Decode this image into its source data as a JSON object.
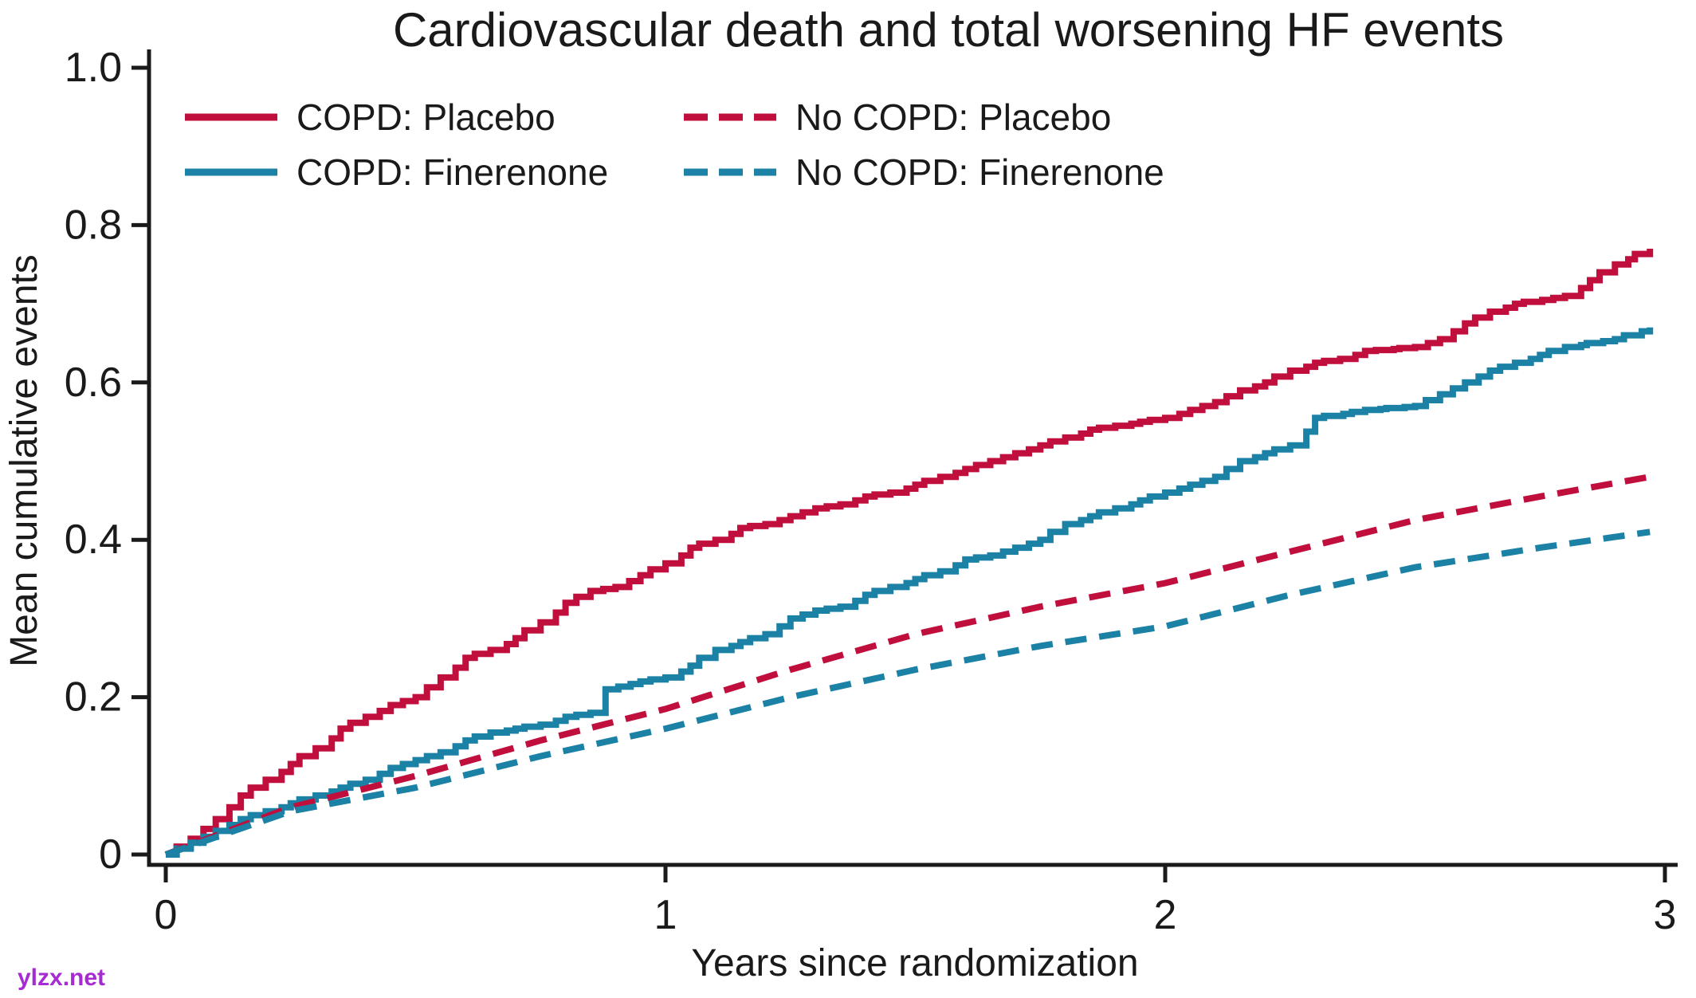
{
  "watermark": {
    "text": "ylzx.net",
    "color": "#a62bd3"
  },
  "chart_data": {
    "type": "line",
    "subtype": "step-cumulative-incidence",
    "title": "Cardiovascular death and total worsening HF events",
    "xlabel": "Years since randomization",
    "ylabel": "Mean cumulative events",
    "xlim": [
      0,
      3
    ],
    "ylim": [
      0,
      1.0
    ],
    "xticks": [
      0,
      1,
      2,
      3
    ],
    "xtick_labels": [
      "0",
      "1",
      "2",
      "3"
    ],
    "yticks": [
      0,
      0.2,
      0.4,
      0.6,
      0.8,
      1.0
    ],
    "ytick_labels": [
      "0",
      "0.2",
      "0.4",
      "0.6",
      "0.8",
      "1.0"
    ],
    "grid": false,
    "legend_position": "top-left-two-columns",
    "axis_color": "#1a1a1a",
    "text_color": "#1a1a1a",
    "series": [
      {
        "name": "COPD: Placebo",
        "color": "#c00f3c",
        "style": "solid",
        "step": true,
        "x": [
          0,
          0.05,
          0.1,
          0.15,
          0.2,
          0.25,
          0.3,
          0.35,
          0.4,
          0.45,
          0.5,
          0.55,
          0.6,
          0.65,
          0.7,
          0.75,
          0.8,
          0.85,
          0.9,
          0.95,
          1.0,
          1.05,
          1.1,
          1.15,
          1.2,
          1.25,
          1.3,
          1.35,
          1.4,
          1.45,
          1.5,
          1.55,
          1.6,
          1.65,
          1.7,
          1.75,
          1.8,
          1.85,
          1.9,
          1.95,
          2.0,
          2.05,
          2.1,
          2.15,
          2.2,
          2.25,
          2.3,
          2.35,
          2.4,
          2.5,
          2.55,
          2.6,
          2.65,
          2.7,
          2.8,
          2.85,
          2.9,
          2.97
        ],
        "y": [
          0,
          0.02,
          0.045,
          0.075,
          0.095,
          0.115,
          0.135,
          0.16,
          0.175,
          0.19,
          0.2,
          0.225,
          0.25,
          0.26,
          0.275,
          0.295,
          0.32,
          0.335,
          0.34,
          0.355,
          0.37,
          0.39,
          0.4,
          0.415,
          0.42,
          0.43,
          0.44,
          0.445,
          0.455,
          0.46,
          0.47,
          0.48,
          0.49,
          0.5,
          0.51,
          0.52,
          0.53,
          0.54,
          0.545,
          0.55,
          0.555,
          0.565,
          0.575,
          0.59,
          0.6,
          0.615,
          0.625,
          0.63,
          0.64,
          0.645,
          0.655,
          0.675,
          0.69,
          0.7,
          0.71,
          0.73,
          0.75,
          0.77
        ]
      },
      {
        "name": "COPD: Finerenone",
        "color": "#1b81a5",
        "style": "solid",
        "step": true,
        "x": [
          0,
          0.05,
          0.1,
          0.15,
          0.2,
          0.25,
          0.3,
          0.35,
          0.4,
          0.45,
          0.5,
          0.55,
          0.6,
          0.65,
          0.7,
          0.75,
          0.8,
          0.85,
          0.88,
          0.95,
          1.0,
          1.05,
          1.1,
          1.15,
          1.2,
          1.25,
          1.3,
          1.35,
          1.4,
          1.45,
          1.5,
          1.55,
          1.6,
          1.65,
          1.7,
          1.75,
          1.8,
          1.85,
          1.9,
          1.95,
          2.0,
          2.05,
          2.1,
          2.15,
          2.2,
          2.25,
          2.3,
          2.4,
          2.5,
          2.55,
          2.6,
          2.65,
          2.7,
          2.75,
          2.8,
          2.9,
          2.97
        ],
        "y": [
          0,
          0.015,
          0.03,
          0.045,
          0.055,
          0.065,
          0.075,
          0.085,
          0.095,
          0.11,
          0.12,
          0.13,
          0.145,
          0.155,
          0.16,
          0.165,
          0.175,
          0.18,
          0.21,
          0.22,
          0.225,
          0.24,
          0.26,
          0.27,
          0.28,
          0.3,
          0.31,
          0.315,
          0.33,
          0.34,
          0.35,
          0.36,
          0.375,
          0.38,
          0.39,
          0.4,
          0.42,
          0.43,
          0.44,
          0.45,
          0.46,
          0.47,
          0.48,
          0.5,
          0.51,
          0.52,
          0.555,
          0.565,
          0.57,
          0.585,
          0.6,
          0.615,
          0.625,
          0.635,
          0.645,
          0.655,
          0.67
        ]
      },
      {
        "name": "No COPD: Placebo",
        "color": "#c00f3c",
        "style": "dashed",
        "step": false,
        "x": [
          0,
          0.25,
          0.5,
          0.75,
          1.0,
          1.25,
          1.5,
          1.75,
          2.0,
          2.25,
          2.5,
          2.75,
          2.97
        ],
        "y": [
          0,
          0.06,
          0.1,
          0.145,
          0.185,
          0.235,
          0.28,
          0.315,
          0.345,
          0.385,
          0.425,
          0.455,
          0.48
        ]
      },
      {
        "name": "No COPD: Finerenone",
        "color": "#1b81a5",
        "style": "dashed",
        "step": false,
        "x": [
          0,
          0.25,
          0.5,
          0.75,
          1.0,
          1.25,
          1.5,
          1.75,
          2.0,
          2.25,
          2.5,
          2.75,
          2.97
        ],
        "y": [
          0,
          0.055,
          0.085,
          0.125,
          0.16,
          0.2,
          0.235,
          0.265,
          0.29,
          0.33,
          0.365,
          0.39,
          0.41
        ]
      }
    ]
  }
}
